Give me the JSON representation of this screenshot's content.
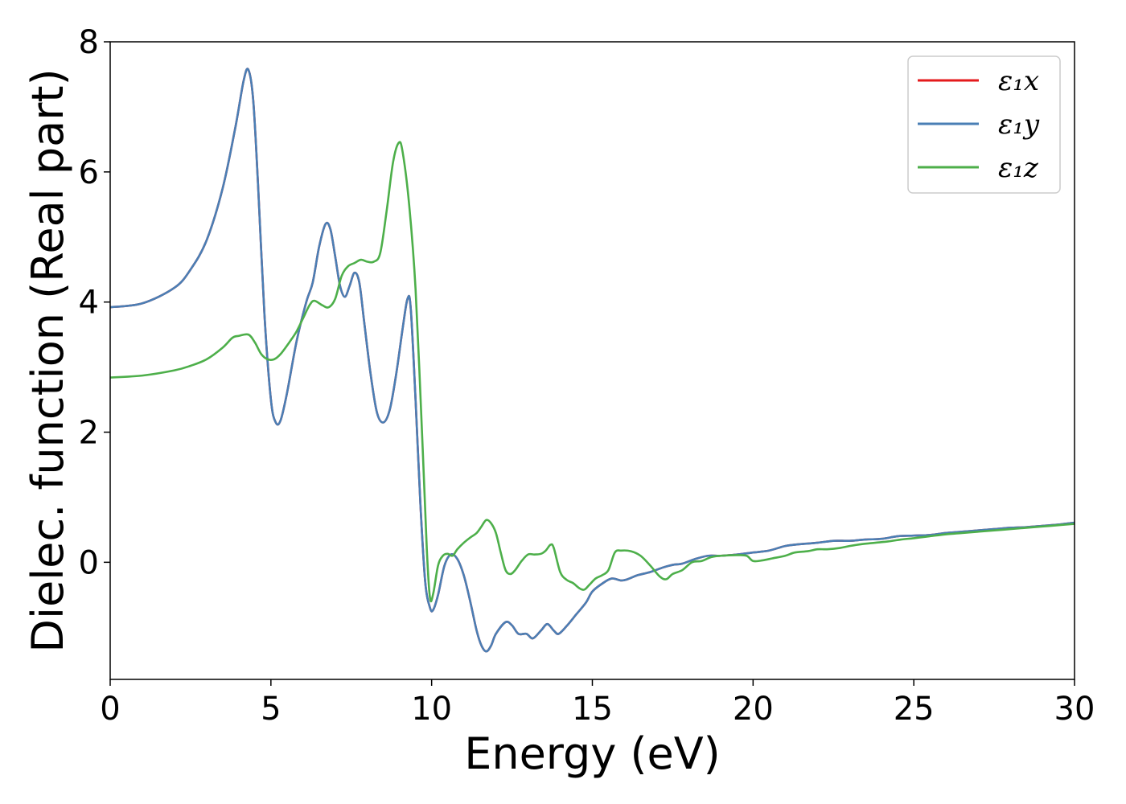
{
  "chart_data": {
    "type": "line",
    "title": "",
    "xlabel": "Energy (eV)",
    "ylabel": "Dielec. function (Real part)",
    "xlim": [
      0,
      30
    ],
    "ylim": [
      -1.8,
      8
    ],
    "xticks": [
      0,
      5,
      10,
      15,
      20,
      25,
      30
    ],
    "yticks": [
      0,
      2,
      4,
      6,
      8
    ],
    "grid": false,
    "legend_position": "top-right",
    "series": [
      {
        "name": "ε₁x",
        "color": "#e41a1c",
        "points": [
          [
            0,
            3.92
          ],
          [
            1,
            3.98
          ],
          [
            2,
            4.22
          ],
          [
            2.5,
            4.5
          ],
          [
            3,
            4.95
          ],
          [
            3.5,
            5.75
          ],
          [
            3.9,
            6.7
          ],
          [
            4.15,
            7.4
          ],
          [
            4.3,
            7.57
          ],
          [
            4.45,
            7.1
          ],
          [
            4.6,
            5.8
          ],
          [
            4.8,
            3.8
          ],
          [
            5.0,
            2.5
          ],
          [
            5.15,
            2.15
          ],
          [
            5.3,
            2.18
          ],
          [
            5.5,
            2.6
          ],
          [
            5.8,
            3.4
          ],
          [
            6.1,
            4.0
          ],
          [
            6.3,
            4.3
          ],
          [
            6.5,
            4.85
          ],
          [
            6.7,
            5.2
          ],
          [
            6.85,
            5.12
          ],
          [
            7.0,
            4.7
          ],
          [
            7.15,
            4.25
          ],
          [
            7.3,
            4.08
          ],
          [
            7.45,
            4.25
          ],
          [
            7.6,
            4.45
          ],
          [
            7.75,
            4.3
          ],
          [
            7.9,
            3.7
          ],
          [
            8.1,
            2.9
          ],
          [
            8.3,
            2.3
          ],
          [
            8.5,
            2.15
          ],
          [
            8.7,
            2.35
          ],
          [
            8.9,
            2.9
          ],
          [
            9.1,
            3.6
          ],
          [
            9.25,
            4.05
          ],
          [
            9.35,
            3.9
          ],
          [
            9.5,
            2.5
          ],
          [
            9.65,
            0.9
          ],
          [
            9.8,
            -0.3
          ],
          [
            9.95,
            -0.7
          ],
          [
            10.05,
            -0.73
          ],
          [
            10.2,
            -0.5
          ],
          [
            10.4,
            -0.05
          ],
          [
            10.6,
            0.12
          ],
          [
            10.8,
            0.05
          ],
          [
            11.0,
            -0.2
          ],
          [
            11.2,
            -0.6
          ],
          [
            11.4,
            -1.05
          ],
          [
            11.55,
            -1.28
          ],
          [
            11.7,
            -1.37
          ],
          [
            11.85,
            -1.28
          ],
          [
            12.0,
            -1.1
          ],
          [
            12.3,
            -0.92
          ],
          [
            12.5,
            -0.97
          ],
          [
            12.7,
            -1.1
          ],
          [
            12.95,
            -1.1
          ],
          [
            13.15,
            -1.17
          ],
          [
            13.4,
            -1.05
          ],
          [
            13.6,
            -0.95
          ],
          [
            13.8,
            -1.05
          ],
          [
            13.95,
            -1.1
          ],
          [
            14.2,
            -0.98
          ],
          [
            14.5,
            -0.8
          ],
          [
            14.8,
            -0.62
          ],
          [
            15.0,
            -0.45
          ],
          [
            15.3,
            -0.33
          ],
          [
            15.6,
            -0.25
          ],
          [
            15.9,
            -0.28
          ],
          [
            16.1,
            -0.26
          ],
          [
            16.4,
            -0.2
          ],
          [
            16.8,
            -0.15
          ],
          [
            17.2,
            -0.08
          ],
          [
            17.5,
            -0.04
          ],
          [
            17.8,
            -0.02
          ],
          [
            18.2,
            0.05
          ],
          [
            18.6,
            0.1
          ],
          [
            19.0,
            0.1
          ],
          [
            19.5,
            0.12
          ],
          [
            20.0,
            0.15
          ],
          [
            20.5,
            0.18
          ],
          [
            21.0,
            0.25
          ],
          [
            21.5,
            0.28
          ],
          [
            22.0,
            0.3
          ],
          [
            22.5,
            0.33
          ],
          [
            23.0,
            0.33
          ],
          [
            23.5,
            0.35
          ],
          [
            24.0,
            0.36
          ],
          [
            24.5,
            0.4
          ],
          [
            25.0,
            0.41
          ],
          [
            25.5,
            0.42
          ],
          [
            26.0,
            0.45
          ],
          [
            26.5,
            0.47
          ],
          [
            27.0,
            0.49
          ],
          [
            27.5,
            0.51
          ],
          [
            28.0,
            0.53
          ],
          [
            28.5,
            0.54
          ],
          [
            29.0,
            0.56
          ],
          [
            29.5,
            0.58
          ],
          [
            30.0,
            0.61
          ]
        ]
      },
      {
        "name": "ε₁y",
        "color": "#4a7fb5",
        "points": [
          [
            0,
            3.92
          ],
          [
            1,
            3.98
          ],
          [
            2,
            4.22
          ],
          [
            2.5,
            4.5
          ],
          [
            3,
            4.95
          ],
          [
            3.5,
            5.75
          ],
          [
            3.9,
            6.7
          ],
          [
            4.15,
            7.4
          ],
          [
            4.3,
            7.57
          ],
          [
            4.45,
            7.1
          ],
          [
            4.6,
            5.8
          ],
          [
            4.8,
            3.8
          ],
          [
            5.0,
            2.5
          ],
          [
            5.15,
            2.15
          ],
          [
            5.3,
            2.18
          ],
          [
            5.5,
            2.6
          ],
          [
            5.8,
            3.4
          ],
          [
            6.1,
            4.0
          ],
          [
            6.3,
            4.3
          ],
          [
            6.5,
            4.85
          ],
          [
            6.7,
            5.2
          ],
          [
            6.85,
            5.12
          ],
          [
            7.0,
            4.7
          ],
          [
            7.15,
            4.25
          ],
          [
            7.3,
            4.08
          ],
          [
            7.45,
            4.25
          ],
          [
            7.6,
            4.45
          ],
          [
            7.75,
            4.3
          ],
          [
            7.9,
            3.7
          ],
          [
            8.1,
            2.9
          ],
          [
            8.3,
            2.3
          ],
          [
            8.5,
            2.15
          ],
          [
            8.7,
            2.35
          ],
          [
            8.9,
            2.9
          ],
          [
            9.1,
            3.6
          ],
          [
            9.25,
            4.05
          ],
          [
            9.35,
            3.9
          ],
          [
            9.5,
            2.5
          ],
          [
            9.65,
            0.9
          ],
          [
            9.8,
            -0.3
          ],
          [
            9.95,
            -0.7
          ],
          [
            10.05,
            -0.73
          ],
          [
            10.2,
            -0.5
          ],
          [
            10.4,
            -0.05
          ],
          [
            10.6,
            0.12
          ],
          [
            10.8,
            0.05
          ],
          [
            11.0,
            -0.2
          ],
          [
            11.2,
            -0.6
          ],
          [
            11.4,
            -1.05
          ],
          [
            11.55,
            -1.28
          ],
          [
            11.7,
            -1.37
          ],
          [
            11.85,
            -1.28
          ],
          [
            12.0,
            -1.1
          ],
          [
            12.3,
            -0.92
          ],
          [
            12.5,
            -0.97
          ],
          [
            12.7,
            -1.1
          ],
          [
            12.95,
            -1.1
          ],
          [
            13.15,
            -1.17
          ],
          [
            13.4,
            -1.05
          ],
          [
            13.6,
            -0.95
          ],
          [
            13.8,
            -1.05
          ],
          [
            13.95,
            -1.1
          ],
          [
            14.2,
            -0.98
          ],
          [
            14.5,
            -0.8
          ],
          [
            14.8,
            -0.62
          ],
          [
            15.0,
            -0.45
          ],
          [
            15.3,
            -0.33
          ],
          [
            15.6,
            -0.25
          ],
          [
            15.9,
            -0.28
          ],
          [
            16.1,
            -0.26
          ],
          [
            16.4,
            -0.2
          ],
          [
            16.8,
            -0.15
          ],
          [
            17.2,
            -0.08
          ],
          [
            17.5,
            -0.04
          ],
          [
            17.8,
            -0.02
          ],
          [
            18.2,
            0.05
          ],
          [
            18.6,
            0.1
          ],
          [
            19.0,
            0.1
          ],
          [
            19.5,
            0.12
          ],
          [
            20.0,
            0.15
          ],
          [
            20.5,
            0.18
          ],
          [
            21.0,
            0.25
          ],
          [
            21.5,
            0.28
          ],
          [
            22.0,
            0.3
          ],
          [
            22.5,
            0.33
          ],
          [
            23.0,
            0.33
          ],
          [
            23.5,
            0.35
          ],
          [
            24.0,
            0.36
          ],
          [
            24.5,
            0.4
          ],
          [
            25.0,
            0.41
          ],
          [
            25.5,
            0.42
          ],
          [
            26.0,
            0.45
          ],
          [
            26.5,
            0.47
          ],
          [
            27.0,
            0.49
          ],
          [
            27.5,
            0.51
          ],
          [
            28.0,
            0.53
          ],
          [
            28.5,
            0.54
          ],
          [
            29.0,
            0.56
          ],
          [
            29.5,
            0.58
          ],
          [
            30.0,
            0.61
          ]
        ]
      },
      {
        "name": "ε₁z",
        "color": "#4daf4a",
        "points": [
          [
            0,
            2.84
          ],
          [
            1,
            2.87
          ],
          [
            2,
            2.95
          ],
          [
            2.5,
            3.02
          ],
          [
            3,
            3.12
          ],
          [
            3.5,
            3.3
          ],
          [
            3.8,
            3.45
          ],
          [
            4.0,
            3.48
          ],
          [
            4.3,
            3.5
          ],
          [
            4.5,
            3.38
          ],
          [
            4.7,
            3.2
          ],
          [
            4.9,
            3.12
          ],
          [
            5.1,
            3.12
          ],
          [
            5.3,
            3.2
          ],
          [
            5.6,
            3.4
          ],
          [
            5.8,
            3.55
          ],
          [
            6.0,
            3.75
          ],
          [
            6.2,
            3.95
          ],
          [
            6.35,
            4.02
          ],
          [
            6.6,
            3.95
          ],
          [
            6.8,
            3.92
          ],
          [
            7.0,
            4.05
          ],
          [
            7.2,
            4.4
          ],
          [
            7.4,
            4.55
          ],
          [
            7.6,
            4.6
          ],
          [
            7.8,
            4.65
          ],
          [
            8.0,
            4.62
          ],
          [
            8.2,
            4.62
          ],
          [
            8.4,
            4.75
          ],
          [
            8.6,
            5.4
          ],
          [
            8.8,
            6.15
          ],
          [
            8.98,
            6.45
          ],
          [
            9.1,
            6.3
          ],
          [
            9.3,
            5.5
          ],
          [
            9.5,
            4.2
          ],
          [
            9.7,
            2.0
          ],
          [
            9.85,
            0.2
          ],
          [
            9.95,
            -0.55
          ],
          [
            10.05,
            -0.48
          ],
          [
            10.2,
            -0.05
          ],
          [
            10.35,
            0.1
          ],
          [
            10.5,
            0.13
          ],
          [
            10.65,
            0.1
          ],
          [
            10.8,
            0.2
          ],
          [
            11.0,
            0.3
          ],
          [
            11.2,
            0.38
          ],
          [
            11.4,
            0.45
          ],
          [
            11.55,
            0.55
          ],
          [
            11.7,
            0.65
          ],
          [
            11.85,
            0.6
          ],
          [
            12.0,
            0.45
          ],
          [
            12.15,
            0.15
          ],
          [
            12.3,
            -0.12
          ],
          [
            12.45,
            -0.18
          ],
          [
            12.6,
            -0.12
          ],
          [
            12.8,
            0.02
          ],
          [
            13.0,
            0.12
          ],
          [
            13.2,
            0.12
          ],
          [
            13.4,
            0.13
          ],
          [
            13.55,
            0.18
          ],
          [
            13.7,
            0.27
          ],
          [
            13.8,
            0.22
          ],
          [
            14.0,
            -0.15
          ],
          [
            14.2,
            -0.27
          ],
          [
            14.4,
            -0.32
          ],
          [
            14.6,
            -0.4
          ],
          [
            14.75,
            -0.42
          ],
          [
            14.9,
            -0.35
          ],
          [
            15.1,
            -0.25
          ],
          [
            15.3,
            -0.2
          ],
          [
            15.5,
            -0.12
          ],
          [
            15.7,
            0.15
          ],
          [
            15.9,
            0.18
          ],
          [
            16.2,
            0.17
          ],
          [
            16.5,
            0.1
          ],
          [
            16.8,
            -0.05
          ],
          [
            17.1,
            -0.22
          ],
          [
            17.3,
            -0.26
          ],
          [
            17.5,
            -0.18
          ],
          [
            17.8,
            -0.12
          ],
          [
            18.1,
            0.0
          ],
          [
            18.4,
            0.02
          ],
          [
            18.7,
            0.08
          ],
          [
            19.0,
            0.1
          ],
          [
            19.5,
            0.11
          ],
          [
            19.8,
            0.1
          ],
          [
            20.0,
            0.02
          ],
          [
            20.3,
            0.03
          ],
          [
            20.6,
            0.06
          ],
          [
            21.0,
            0.1
          ],
          [
            21.3,
            0.15
          ],
          [
            21.7,
            0.17
          ],
          [
            22.0,
            0.2
          ],
          [
            22.3,
            0.2
          ],
          [
            22.7,
            0.22
          ],
          [
            23.0,
            0.25
          ],
          [
            23.4,
            0.28
          ],
          [
            23.8,
            0.3
          ],
          [
            24.2,
            0.32
          ],
          [
            24.6,
            0.35
          ],
          [
            25.0,
            0.37
          ],
          [
            25.5,
            0.4
          ],
          [
            26.0,
            0.43
          ],
          [
            26.5,
            0.45
          ],
          [
            27.0,
            0.47
          ],
          [
            27.5,
            0.49
          ],
          [
            28.0,
            0.51
          ],
          [
            28.5,
            0.53
          ],
          [
            29.0,
            0.55
          ],
          [
            29.5,
            0.57
          ],
          [
            30.0,
            0.59
          ]
        ]
      }
    ]
  }
}
